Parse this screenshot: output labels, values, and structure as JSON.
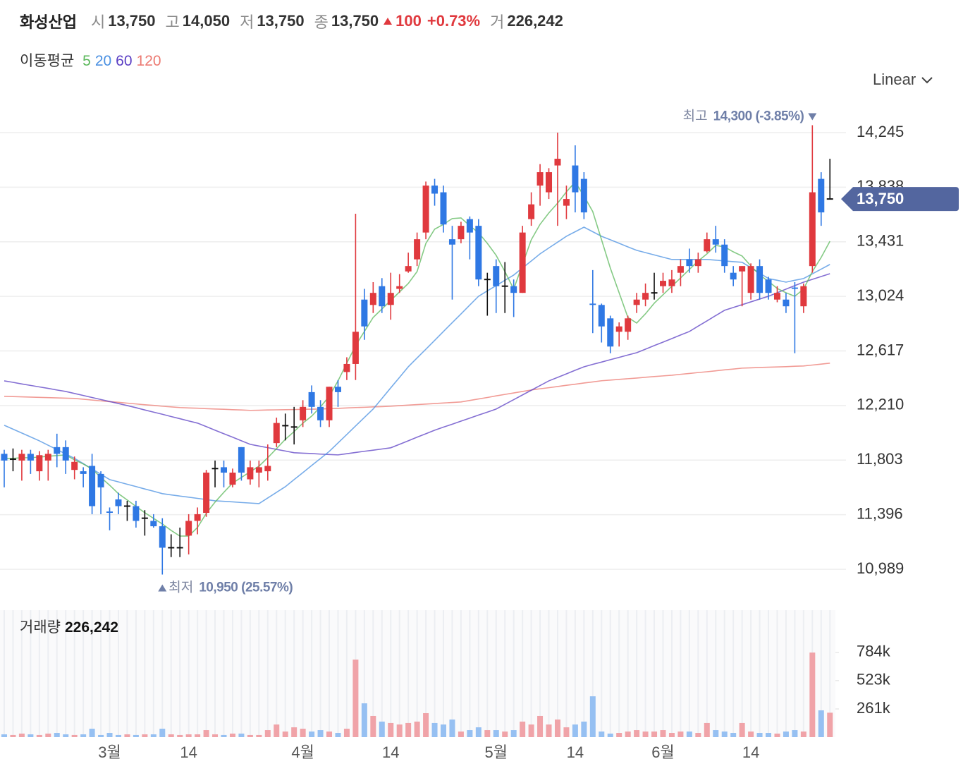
{
  "header": {
    "name": "화성산업",
    "items": [
      {
        "label": "시",
        "value": "13,750"
      },
      {
        "label": "고",
        "value": "14,050"
      },
      {
        "label": "저",
        "value": "13,750"
      },
      {
        "label": "종",
        "value": "13,750"
      }
    ],
    "change": "100",
    "change_pct": "+0.73%",
    "volume_label": "거",
    "volume": "226,242"
  },
  "chart_data": [
    {
      "type": "candlestick",
      "scale": "Linear",
      "categories": [
        null,
        null,
        null,
        null,
        null,
        null,
        null,
        null,
        null,
        null,
        null,
        null,
        "3월",
        null,
        null,
        null,
        null,
        null,
        null,
        null,
        null,
        "14",
        null,
        null,
        null,
        null,
        null,
        null,
        null,
        null,
        null,
        null,
        null,
        null,
        "4월",
        null,
        null,
        null,
        null,
        null,
        null,
        null,
        null,
        null,
        "14",
        null,
        null,
        null,
        null,
        null,
        null,
        null,
        null,
        null,
        null,
        null,
        "5월",
        null,
        null,
        null,
        null,
        null,
        null,
        null,
        null,
        "14",
        null,
        null,
        null,
        null,
        null,
        null,
        null,
        null,
        null,
        "6월",
        null,
        null,
        null,
        null,
        null,
        null,
        null,
        null,
        null,
        "14",
        null,
        null,
        null,
        null,
        null,
        null,
        null,
        null,
        null
      ],
      "open": [
        11850,
        11810,
        11800,
        11850,
        11720,
        11800,
        11900,
        11900,
        11730,
        11720,
        11760,
        11700,
        11420,
        11510,
        11460,
        11460,
        11370,
        11350,
        11310,
        11150,
        11150,
        11240,
        11350,
        11410,
        11740,
        11750,
        11620,
        11900,
        11660,
        11710,
        11720,
        11930,
        12060,
        12050,
        12100,
        12310,
        12200,
        12100,
        12350,
        12460,
        12520,
        13000,
        12960,
        13100,
        12960,
        13080,
        13210,
        13300,
        13500,
        13850,
        13800,
        13450,
        13450,
        13600,
        13550,
        13150,
        13250,
        13100,
        13100,
        13050,
        13600,
        13850,
        13800,
        14000,
        13700,
        14000,
        13900,
        12970,
        12960,
        12860,
        12760,
        12760,
        12960,
        13000,
        13050,
        13100,
        13100,
        13200,
        13300,
        13250,
        13360,
        13450,
        13410,
        13200,
        13210,
        13050,
        13250,
        13150,
        13000,
        13000,
        13090,
        12950,
        13250,
        13900,
        13750
      ],
      "high": [
        11880,
        11890,
        11880,
        11880,
        11870,
        11880,
        12000,
        11950,
        11830,
        11750,
        11850,
        11720,
        11450,
        11560,
        11500,
        11500,
        11430,
        11400,
        11370,
        11250,
        11300,
        11400,
        11450,
        11730,
        11800,
        11800,
        11740,
        11900,
        11800,
        11800,
        11920,
        12120,
        12150,
        12200,
        12250,
        12360,
        12250,
        12350,
        12400,
        12570,
        13640,
        13080,
        13130,
        13160,
        13200,
        13190,
        13350,
        13500,
        13880,
        13900,
        13850,
        13550,
        13580,
        13620,
        13600,
        13200,
        13300,
        13280,
        13150,
        13550,
        13800,
        14010,
        13980,
        14245,
        13850,
        14150,
        13950,
        13220,
        12970,
        12880,
        12830,
        12880,
        13050,
        13120,
        13200,
        13200,
        13220,
        13300,
        13380,
        13350,
        13500,
        13550,
        13450,
        13250,
        13250,
        13270,
        13300,
        13170,
        13100,
        13050,
        13130,
        13120,
        14300,
        13950,
        14050
      ],
      "low": [
        11600,
        11720,
        11650,
        11700,
        11650,
        11650,
        11750,
        11700,
        11660,
        11600,
        11400,
        11400,
        11280,
        11400,
        11350,
        11300,
        11240,
        11300,
        10950,
        11080,
        11080,
        11100,
        11250,
        11380,
        11600,
        11600,
        11600,
        11650,
        11620,
        11600,
        11650,
        11900,
        11950,
        11920,
        12050,
        12150,
        12050,
        12050,
        12200,
        12400,
        12400,
        12700,
        12900,
        12900,
        12850,
        13050,
        13200,
        13250,
        13450,
        13700,
        13500,
        13000,
        13420,
        13300,
        13100,
        12880,
        12900,
        12900,
        12870,
        13050,
        13550,
        13700,
        13750,
        13550,
        13600,
        13650,
        13600,
        12750,
        12680,
        12600,
        12650,
        12700,
        12900,
        12950,
        13000,
        13050,
        13050,
        13100,
        13200,
        13200,
        13350,
        13350,
        13200,
        13100,
        12950,
        13000,
        13000,
        13000,
        12980,
        12900,
        12600,
        12900,
        13200,
        13550,
        13750
      ],
      "close": [
        11800,
        11810,
        11850,
        11800,
        11840,
        11850,
        11850,
        11800,
        11790,
        11700,
        11460,
        11600,
        11410,
        11460,
        11460,
        11350,
        11370,
        11310,
        11150,
        11150,
        11150,
        11350,
        11400,
        11710,
        11740,
        11710,
        11710,
        11710,
        11750,
        11750,
        11760,
        12080,
        12060,
        12050,
        12200,
        12200,
        12100,
        12350,
        12310,
        12520,
        12760,
        12800,
        13050,
        12950,
        13050,
        13100,
        13250,
        13450,
        13850,
        13790,
        13560,
        13410,
        13550,
        13500,
        13150,
        13150,
        13100,
        13100,
        13050,
        13500,
        13710,
        13950,
        13950,
        14050,
        13750,
        13800,
        13650,
        12960,
        12800,
        12650,
        12800,
        12860,
        13000,
        13050,
        13050,
        13140,
        13150,
        13250,
        13250,
        13300,
        13450,
        13410,
        13250,
        13150,
        13250,
        13250,
        13050,
        13050,
        13050,
        12950,
        13080,
        13100,
        13800,
        13650,
        13750
      ],
      "up_color": "#e0393e",
      "down_color": "#2f78e4",
      "flat_color": "#111111",
      "ylim": [
        10800,
        14500
      ],
      "yticks": [
        {
          "value": 14245,
          "label": "14,245"
        },
        {
          "value": 13838,
          "label": "13,838"
        },
        {
          "value": 13431,
          "label": "13,431"
        },
        {
          "value": 13024,
          "label": "13,024"
        },
        {
          "value": 12617,
          "label": "12,617"
        },
        {
          "value": 12210,
          "label": "12,210"
        },
        {
          "value": 11803,
          "label": "11,803"
        },
        {
          "value": 11396,
          "label": "11,396"
        },
        {
          "value": 10989,
          "label": "10,989"
        }
      ],
      "grid": true,
      "ma_title": "이동평균",
      "moving_averages": [
        {
          "name": "5",
          "color": "#5cb85c",
          "values": [
            11816,
            11816,
            11821,
            11821,
            11826,
            11832,
            11837,
            11842,
            11805,
            11774,
            11737,
            11674,
            11616,
            11553,
            11506,
            11458,
            11411,
            11369,
            11327,
            11279,
            11237,
            11237,
            11301,
            11406,
            11490,
            11563,
            11632,
            11674,
            11716,
            11758,
            11821,
            11889,
            11958,
            12016,
            12079,
            12131,
            12200,
            12279,
            12394,
            12526,
            12657,
            12762,
            12867,
            12930,
            12994,
            13057,
            13120,
            13209,
            13419,
            13525,
            13561,
            13604,
            13609,
            13551,
            13498,
            13419,
            13330,
            13209,
            13078,
            13262,
            13446,
            13561,
            13646,
            13719,
            13803,
            13877,
            13772,
            13656,
            13446,
            13235,
            13051,
            12867,
            12825,
            12894,
            12973,
            13036,
            13099,
            13162,
            13225,
            13288,
            13341,
            13404,
            13393,
            13356,
            13325,
            13251,
            13183,
            13136,
            13083,
            13051,
            13025,
            13078,
            13209,
            13314,
            13435
          ]
        },
        {
          "name": "20",
          "color": "#4a90e2",
          "values": [
            12063,
            12034,
            12005,
            11976,
            11947,
            11914,
            11882,
            11849,
            11816,
            11777,
            11737,
            11698,
            11658,
            11641,
            11623,
            11606,
            11588,
            11571,
            11553,
            11544,
            11535,
            11527,
            11518,
            11509,
            11500,
            11496,
            11492,
            11487,
            11483,
            11479,
            11521,
            11563,
            11605,
            11658,
            11710,
            11763,
            11815,
            11868,
            11931,
            11994,
            12058,
            12121,
            12184,
            12263,
            12342,
            12420,
            12499,
            12565,
            12630,
            12696,
            12762,
            12828,
            12893,
            12959,
            13025,
            13065,
            13104,
            13144,
            13183,
            13236,
            13288,
            13341,
            13385,
            13428,
            13472,
            13506,
            13540,
            13506,
            13472,
            13446,
            13420,
            13393,
            13367,
            13350,
            13333,
            13316,
            13299,
            13299,
            13299,
            13299,
            13299,
            13294,
            13288,
            13283,
            13278,
            13238,
            13197,
            13157,
            13144,
            13130,
            13144,
            13157,
            13192,
            13227,
            13262
          ]
        },
        {
          "name": "60",
          "color": "#5b3fc4",
          "values": [
            12394,
            12383,
            12371,
            12360,
            12349,
            12338,
            12326,
            12315,
            12300,
            12285,
            12270,
            12255,
            12240,
            12225,
            12210,
            12194,
            12177,
            12161,
            12145,
            12128,
            12112,
            12095,
            12079,
            12053,
            12026,
            12000,
            11974,
            11947,
            11921,
            11908,
            11896,
            11883,
            11871,
            11858,
            11855,
            11852,
            11848,
            11845,
            11842,
            11851,
            11860,
            11869,
            11877,
            11886,
            11895,
            11921,
            11947,
            11974,
            12000,
            12026,
            12049,
            12071,
            12094,
            12116,
            12139,
            12161,
            12184,
            12219,
            12254,
            12289,
            12324,
            12359,
            12394,
            12420,
            12446,
            12473,
            12499,
            12517,
            12534,
            12552,
            12569,
            12587,
            12604,
            12630,
            12657,
            12683,
            12709,
            12736,
            12762,
            12802,
            12841,
            12881,
            12920,
            12941,
            12962,
            12983,
            13004,
            13025,
            13051,
            13078,
            13104,
            13130,
            13151,
            13172,
            13193
          ]
        },
        {
          "name": "120",
          "color": "#ec7a72",
          "values": [
            12279,
            12277,
            12275,
            12273,
            12271,
            12269,
            12267,
            12265,
            12263,
            12257,
            12251,
            12245,
            12239,
            12234,
            12228,
            12222,
            12216,
            12211,
            12205,
            12200,
            12195,
            12192,
            12190,
            12187,
            12184,
            12182,
            12179,
            12177,
            12174,
            12175,
            12177,
            12178,
            12179,
            12180,
            12182,
            12183,
            12184,
            12187,
            12189,
            12192,
            12195,
            12197,
            12200,
            12202,
            12205,
            12209,
            12213,
            12217,
            12221,
            12225,
            12229,
            12233,
            12237,
            12248,
            12259,
            12270,
            12282,
            12293,
            12304,
            12315,
            12326,
            12335,
            12343,
            12352,
            12361,
            12369,
            12378,
            12386,
            12395,
            12400,
            12405,
            12410,
            12415,
            12421,
            12426,
            12431,
            12436,
            12443,
            12449,
            12456,
            12462,
            12469,
            12476,
            12482,
            12489,
            12491,
            12494,
            12496,
            12498,
            12500,
            12503,
            12505,
            12512,
            12519,
            12526
          ]
        }
      ],
      "high_marker": {
        "label": "최고",
        "text": "14,300 (-3.85%)"
      },
      "low_marker": {
        "label": "최저",
        "text": "10,950 (25.57%)"
      },
      "last_price": {
        "value": 13750,
        "label": "13,750"
      }
    },
    {
      "type": "bar",
      "title": "거래량",
      "current_label": "226,242",
      "values": [
        26000,
        20000,
        33000,
        26000,
        20000,
        33000,
        39000,
        26000,
        20000,
        26000,
        78000,
        20000,
        39000,
        20000,
        26000,
        20000,
        26000,
        26000,
        78000,
        26000,
        20000,
        26000,
        26000,
        65000,
        26000,
        20000,
        33000,
        33000,
        20000,
        20000,
        65000,
        117000,
        52000,
        91000,
        78000,
        52000,
        65000,
        52000,
        39000,
        78000,
        718000,
        313000,
        196000,
        144000,
        131000,
        117000,
        131000,
        144000,
        222000,
        131000,
        117000,
        163000,
        52000,
        65000,
        91000,
        65000,
        65000,
        52000,
        65000,
        144000,
        117000,
        196000,
        117000,
        163000,
        91000,
        117000,
        144000,
        378000,
        52000,
        33000,
        39000,
        52000,
        65000,
        52000,
        52000,
        65000,
        39000,
        52000,
        52000,
        39000,
        131000,
        65000,
        52000,
        39000,
        131000,
        52000,
        39000,
        39000,
        33000,
        52000,
        65000,
        52000,
        783000,
        248000,
        226242
      ],
      "up_color": "#f0a3a8",
      "down_color": "#96c0f2",
      "ylim": [
        0,
        1175000
      ],
      "yticks": [
        {
          "value": 784000,
          "label": "784k"
        },
        {
          "value": 523000,
          "label": "523k"
        },
        {
          "value": 261000,
          "label": "261k"
        }
      ]
    }
  ]
}
